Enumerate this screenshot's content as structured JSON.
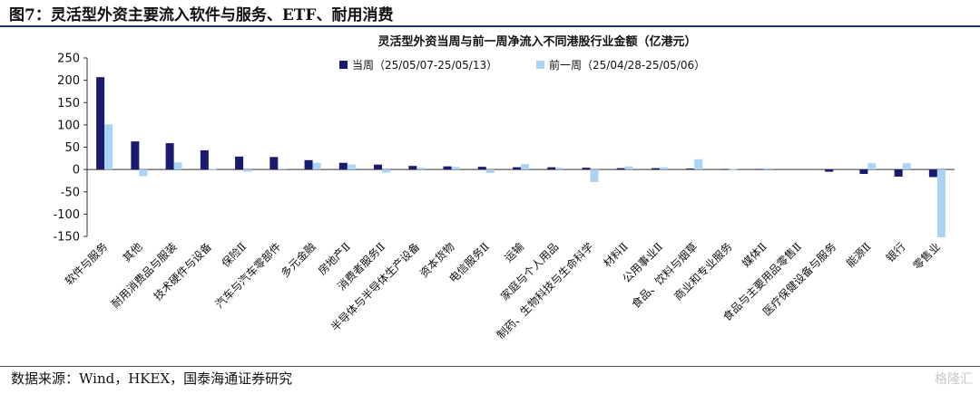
{
  "header": {
    "figure_title": "图7：灵活型外资主要流入软件与服务、ETF、耐用消费"
  },
  "footer": {
    "source": "数据来源：Wind，HKEX，国泰海通证券研究",
    "watermark": "格隆汇"
  },
  "chart_data": {
    "type": "bar",
    "title": "灵活型外资当周与前一周净流入不同港股行业金额（亿港元）",
    "xlabel": "",
    "ylabel": "",
    "ylim": [
      -150,
      250
    ],
    "yticks": [
      250,
      200,
      150,
      100,
      50,
      0,
      -50,
      -100,
      -150
    ],
    "ytick_labels": [
      "250",
      "200",
      "150",
      "100",
      "50",
      "0",
      "-50",
      "-100",
      "-150"
    ],
    "legend_position": "top",
    "categories": [
      "软件与服务",
      "其他",
      "耐用消费品与服装",
      "技术硬件与设备",
      "保险Ⅱ",
      "汽车与汽车零部件",
      "多元金融",
      "房地产Ⅱ",
      "消费者服务Ⅱ",
      "半导体与半导体生产设备",
      "资本货物",
      "电信服务Ⅱ",
      "运输",
      "家庭与个人用品",
      "制药、生物科技与生命科学",
      "材料Ⅱ",
      "公用事业Ⅱ",
      "食品、饮料与烟草",
      "商业和专业服务",
      "媒体Ⅱ",
      "食品与主要用品零售Ⅱ",
      "医疗保健设备与服务",
      "能源Ⅱ",
      "银行",
      "零售业"
    ],
    "series": [
      {
        "name": "当周（25/05/07-25/05/13）",
        "color": "#1a1a6e",
        "values": [
          207,
          63,
          59,
          43,
          29,
          28,
          21,
          15,
          11,
          8,
          7,
          6,
          5,
          5,
          4,
          3,
          3,
          2,
          1,
          1,
          0,
          -5,
          -10,
          -16,
          -17
        ]
      },
      {
        "name": "前一周（25/04/28-25/05/06）",
        "color": "#a9d4f5",
        "values": [
          101,
          -15,
          16,
          1,
          -5,
          2,
          15,
          11,
          -7,
          4,
          6,
          -8,
          12,
          4,
          -28,
          7,
          5,
          23,
          1,
          3,
          0,
          0,
          14,
          14,
          -152
        ]
      }
    ]
  }
}
